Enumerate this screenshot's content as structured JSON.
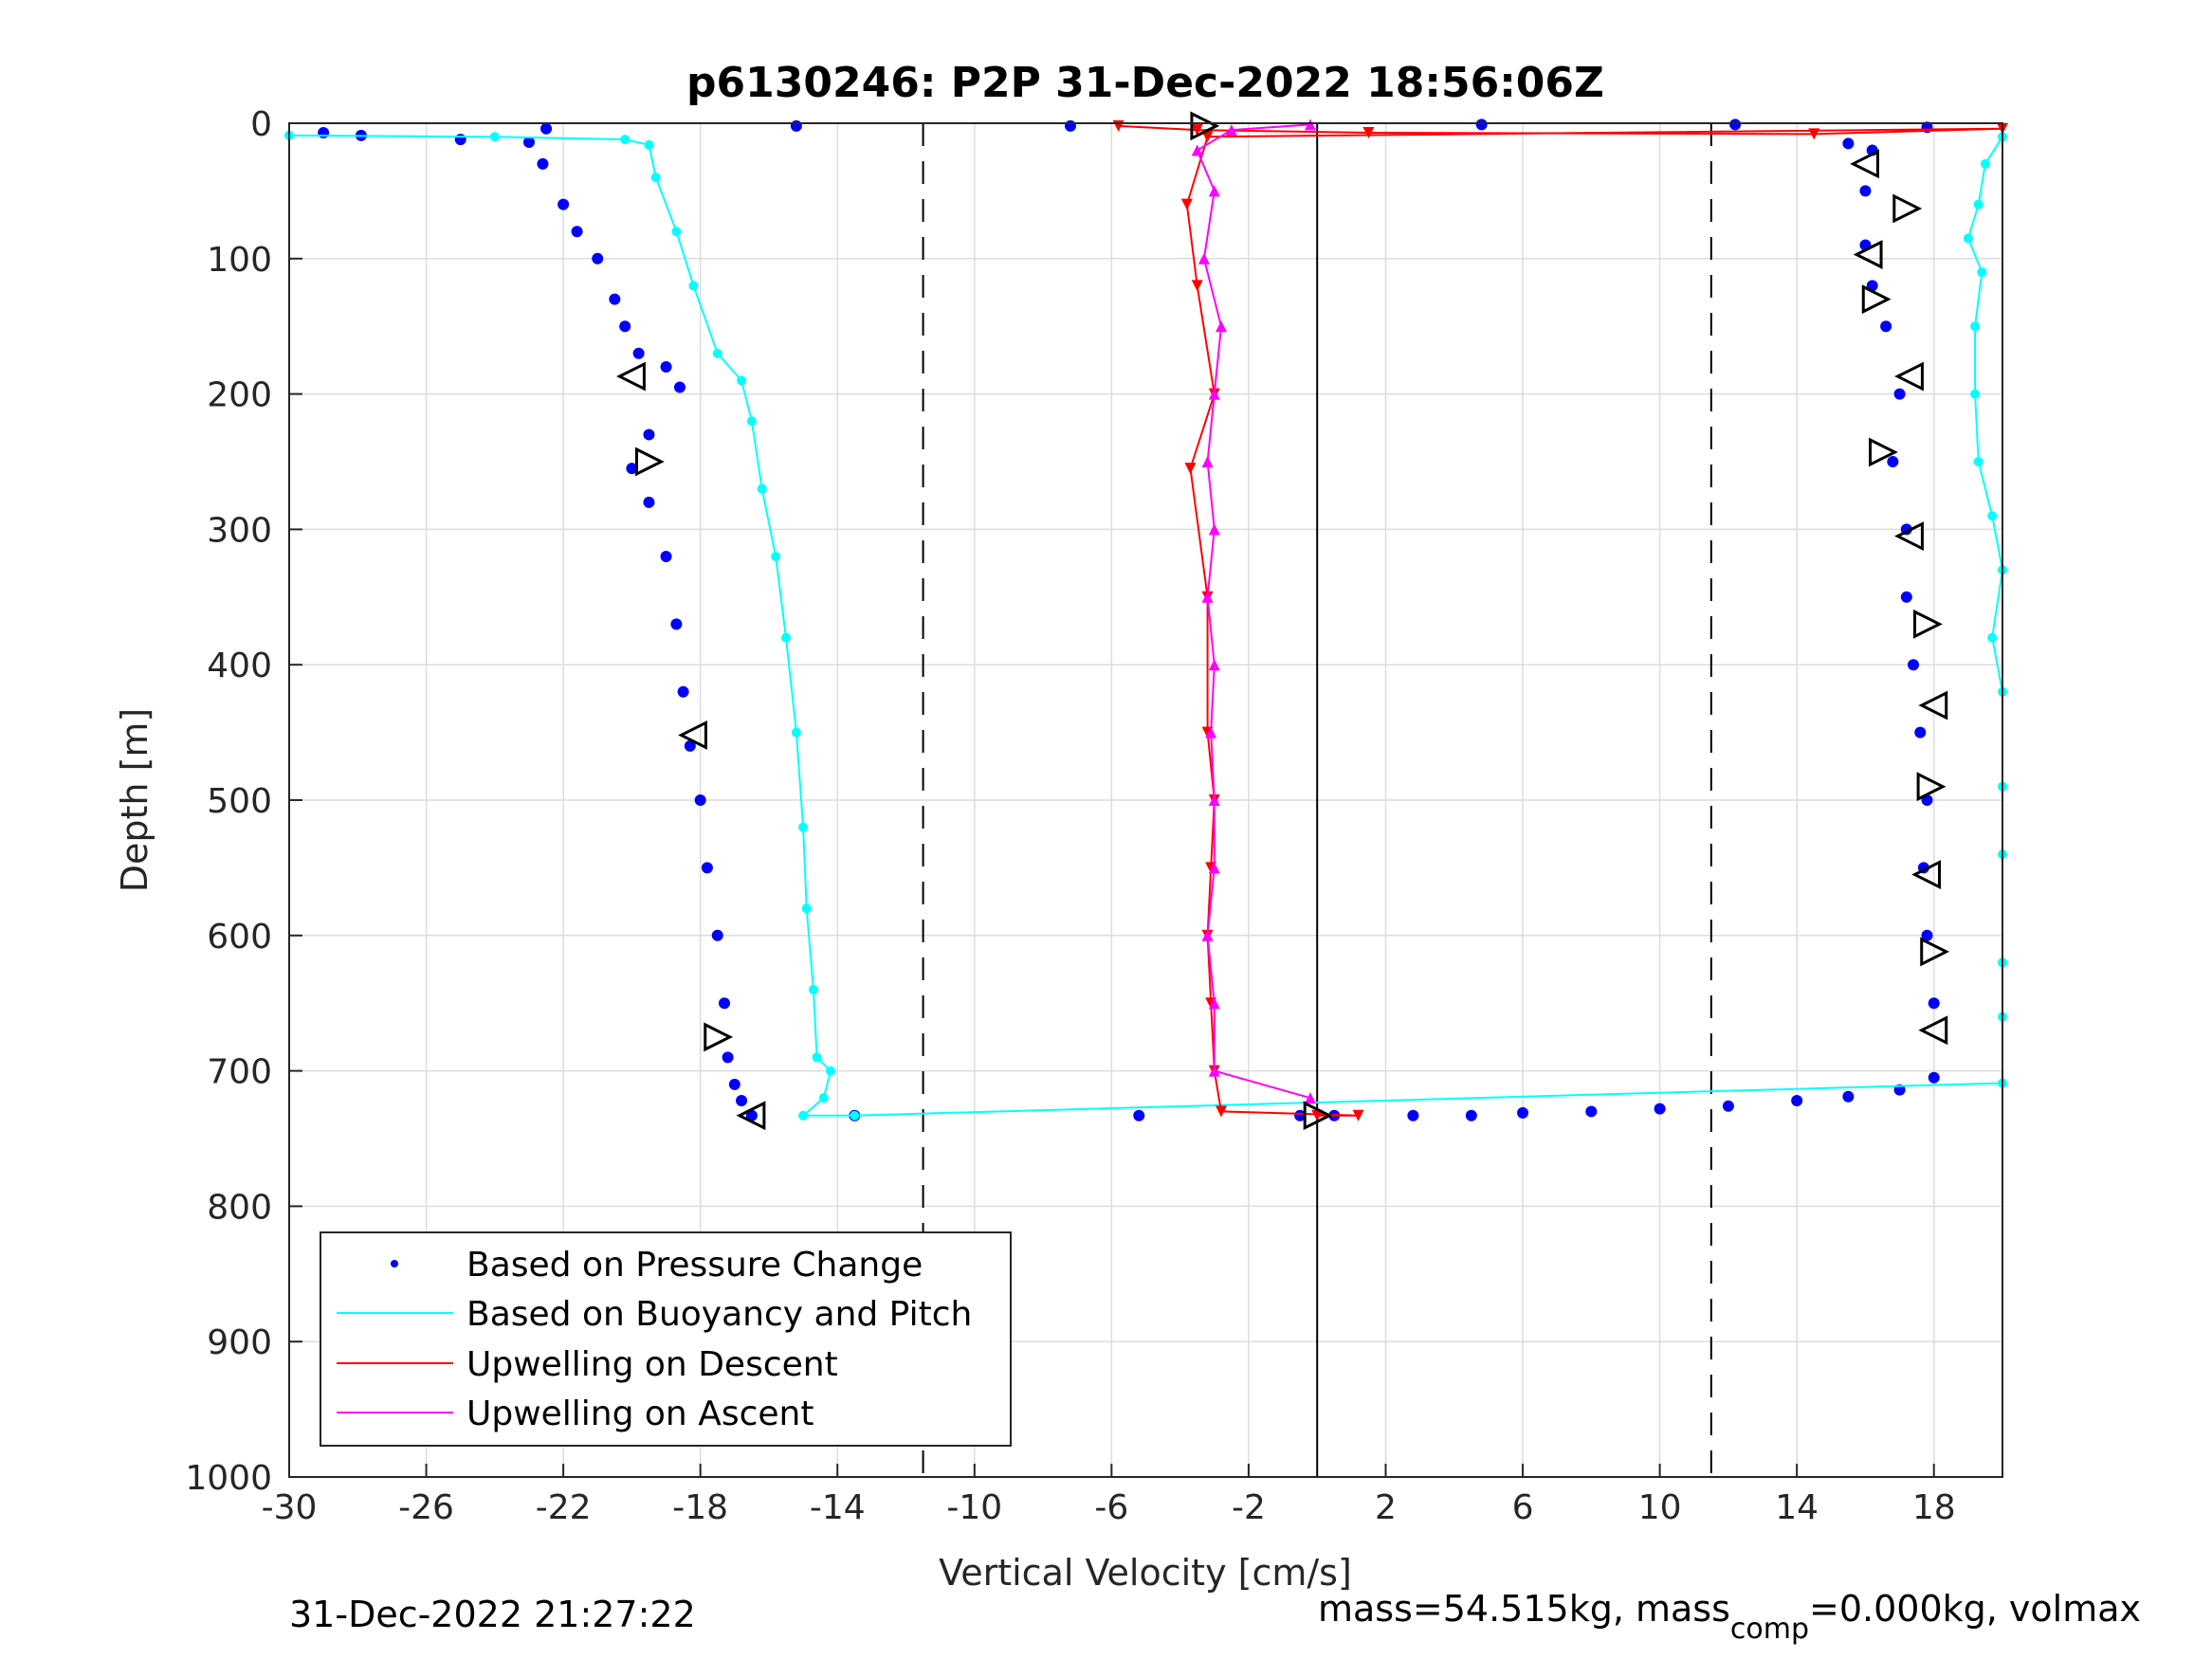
{
  "chart_data": {
    "type": "scatter",
    "title": "p6130246: P2P 31-Dec-2022 18:56:06Z",
    "xlabel": "Vertical Velocity [cm/s]",
    "ylabel": "Depth [m]",
    "xlim": [
      -30,
      20
    ],
    "ylim": [
      0,
      1000
    ],
    "y_reversed": true,
    "grid": true,
    "x_ticks": [
      -30,
      -26,
      -22,
      -18,
      -14,
      -10,
      -6,
      -2,
      2,
      6,
      10,
      14,
      18
    ],
    "y_ticks": [
      0,
      100,
      200,
      300,
      400,
      500,
      600,
      700,
      800,
      900,
      1000
    ],
    "x_tick_labels": [
      "-30",
      "-26",
      "-22",
      "-18",
      "-14",
      "-10",
      "-6",
      "-2",
      "2",
      "6",
      "10",
      "14",
      "18"
    ],
    "y_tick_labels": [
      "0",
      "100",
      "200",
      "300",
      "400",
      "500",
      "600",
      "700",
      "800",
      "900",
      "1000"
    ],
    "reference_lines": {
      "solid": [
        0
      ],
      "dashed": [
        -11.5,
        11.5
      ]
    },
    "legend": {
      "placement": "bottom-left",
      "entries": [
        {
          "name": "Based on Pressure Change",
          "color": "#0000ff",
          "style": "dot"
        },
        {
          "name": "Based on Buoyancy and Pitch",
          "color": "#00ffff",
          "style": "line"
        },
        {
          "name": "Upwelling on Descent",
          "color": "#ff0000",
          "style": "line"
        },
        {
          "name": "Upwelling on Ascent",
          "color": "#ff00ff",
          "style": "line"
        }
      ]
    },
    "series": [
      {
        "name": "Based on Pressure Change",
        "color": "#0000ff",
        "points": [
          [
            -29,
            7
          ],
          [
            -27.9,
            9
          ],
          [
            -25,
            12
          ],
          [
            -23,
            14
          ],
          [
            -22.6,
            30
          ],
          [
            -22,
            60
          ],
          [
            -21.6,
            80
          ],
          [
            -21,
            100
          ],
          [
            -20.5,
            130
          ],
          [
            -20.2,
            150
          ],
          [
            -19.8,
            170
          ],
          [
            -19,
            180
          ],
          [
            -18.6,
            195
          ],
          [
            -19.5,
            230
          ],
          [
            -20,
            255
          ],
          [
            -19.5,
            280
          ],
          [
            -19,
            320
          ],
          [
            -18.7,
            370
          ],
          [
            -18.5,
            420
          ],
          [
            -18.3,
            460
          ],
          [
            -18,
            500
          ],
          [
            -17.8,
            550
          ],
          [
            -17.5,
            600
          ],
          [
            -17.3,
            650
          ],
          [
            -17.2,
            690
          ],
          [
            -17,
            710
          ],
          [
            -16.8,
            722
          ],
          [
            -16.5,
            733
          ],
          [
            -13.5,
            733
          ],
          [
            -5.2,
            733
          ],
          [
            -0.5,
            733
          ],
          [
            0.5,
            733
          ],
          [
            2.8,
            733
          ],
          [
            4.5,
            733
          ],
          [
            6,
            731
          ],
          [
            8,
            730
          ],
          [
            10,
            728
          ],
          [
            12,
            726
          ],
          [
            14,
            722
          ],
          [
            15.5,
            719
          ],
          [
            17,
            714
          ],
          [
            18,
            705
          ],
          [
            18,
            650
          ],
          [
            17.8,
            600
          ],
          [
            17.7,
            550
          ],
          [
            17.8,
            500
          ],
          [
            17.6,
            450
          ],
          [
            17.4,
            400
          ],
          [
            17.2,
            350
          ],
          [
            17.2,
            300
          ],
          [
            16.8,
            250
          ],
          [
            17,
            200
          ],
          [
            16.6,
            150
          ],
          [
            16.2,
            120
          ],
          [
            16,
            90
          ],
          [
            16,
            50
          ],
          [
            16.2,
            20
          ],
          [
            15.5,
            15
          ],
          [
            17.8,
            3
          ],
          [
            12.2,
            1
          ],
          [
            4.8,
            1
          ],
          [
            -7.2,
            2
          ],
          [
            -15.2,
            2
          ],
          [
            -22.5,
            4
          ]
        ]
      },
      {
        "name": "Based on Buoyancy and Pitch",
        "color": "#00ffff",
        "points": [
          [
            -30,
            9
          ],
          [
            -24,
            10
          ],
          [
            -20.2,
            12
          ],
          [
            -19.5,
            16
          ],
          [
            -19.3,
            40
          ],
          [
            -18.7,
            80
          ],
          [
            -18.2,
            120
          ],
          [
            -17.5,
            170
          ],
          [
            -16.8,
            190
          ],
          [
            -16.5,
            220
          ],
          [
            -16.2,
            270
          ],
          [
            -15.8,
            320
          ],
          [
            -15.5,
            380
          ],
          [
            -15.2,
            450
          ],
          [
            -15,
            520
          ],
          [
            -14.9,
            580
          ],
          [
            -14.7,
            640
          ],
          [
            -14.6,
            690
          ],
          [
            -14.2,
            700
          ],
          [
            -14.4,
            720
          ],
          [
            -15,
            733
          ],
          [
            -13.5,
            733
          ],
          [
            20,
            709
          ],
          [
            20,
            660
          ],
          [
            20,
            620
          ],
          [
            20,
            540
          ],
          [
            20,
            490
          ],
          [
            20,
            420
          ],
          [
            19.7,
            380
          ],
          [
            20,
            330
          ],
          [
            19.7,
            290
          ],
          [
            19.3,
            250
          ],
          [
            19.2,
            200
          ],
          [
            19.2,
            150
          ],
          [
            19.4,
            110
          ],
          [
            19,
            85
          ],
          [
            19.3,
            60
          ],
          [
            19.5,
            30
          ],
          [
            20,
            10
          ]
        ]
      },
      {
        "name": "Upwelling on Descent",
        "color": "#ff0000",
        "points": [
          [
            -5.8,
            2
          ],
          [
            -3.5,
            5
          ],
          [
            1.5,
            7
          ],
          [
            14.5,
            8
          ],
          [
            20,
            4
          ],
          [
            -3.2,
            10
          ],
          [
            -3.8,
            60
          ],
          [
            -3.5,
            120
          ],
          [
            -3,
            200
          ],
          [
            -3.7,
            255
          ],
          [
            -3.2,
            350
          ],
          [
            -3.2,
            450
          ],
          [
            -3,
            500
          ],
          [
            -3.1,
            550
          ],
          [
            -3.2,
            600
          ],
          [
            -3.1,
            650
          ],
          [
            -3,
            700
          ],
          [
            -2.8,
            730
          ],
          [
            1.2,
            733
          ],
          [
            0,
            733
          ]
        ]
      },
      {
        "name": "Upwelling on Ascent",
        "color": "#ff00ff",
        "points": [
          [
            -0.2,
            720
          ],
          [
            -3,
            700
          ],
          [
            -3,
            650
          ],
          [
            -3.2,
            600
          ],
          [
            -3,
            550
          ],
          [
            -3,
            500
          ],
          [
            -3.1,
            450
          ],
          [
            -3,
            400
          ],
          [
            -3.2,
            350
          ],
          [
            -3,
            300
          ],
          [
            -3.2,
            250
          ],
          [
            -3,
            200
          ],
          [
            -2.8,
            150
          ],
          [
            -3.3,
            100
          ],
          [
            -3,
            50
          ],
          [
            -3.5,
            20
          ],
          [
            -2.5,
            5
          ],
          [
            -0.2,
            1
          ]
        ]
      },
      {
        "name": "",
        "color": "#000000",
        "marker": "triangle-outline",
        "points": [
          [
            -3.3,
            2
          ],
          [
            -20,
            187
          ],
          [
            -19.5,
            250
          ],
          [
            -18.2,
            452
          ],
          [
            -17.5,
            675
          ],
          [
            -16.5,
            733
          ],
          [
            0,
            733
          ],
          [
            16,
            30
          ],
          [
            17.2,
            63
          ],
          [
            16.1,
            97
          ],
          [
            16.3,
            130
          ],
          [
            17.3,
            187
          ],
          [
            16.5,
            243
          ],
          [
            17.3,
            305
          ],
          [
            17.8,
            370
          ],
          [
            18,
            430
          ],
          [
            17.9,
            490
          ],
          [
            17.8,
            555
          ],
          [
            18,
            612
          ],
          [
            18,
            670
          ]
        ]
      }
    ]
  },
  "footer": {
    "timestamp": "31-Dec-2022 21:27:22",
    "mass_prefix": "mass=54.515kg, mass",
    "mass_sub": "comp",
    "mass_suffix": "=0.000kg, volmax"
  }
}
